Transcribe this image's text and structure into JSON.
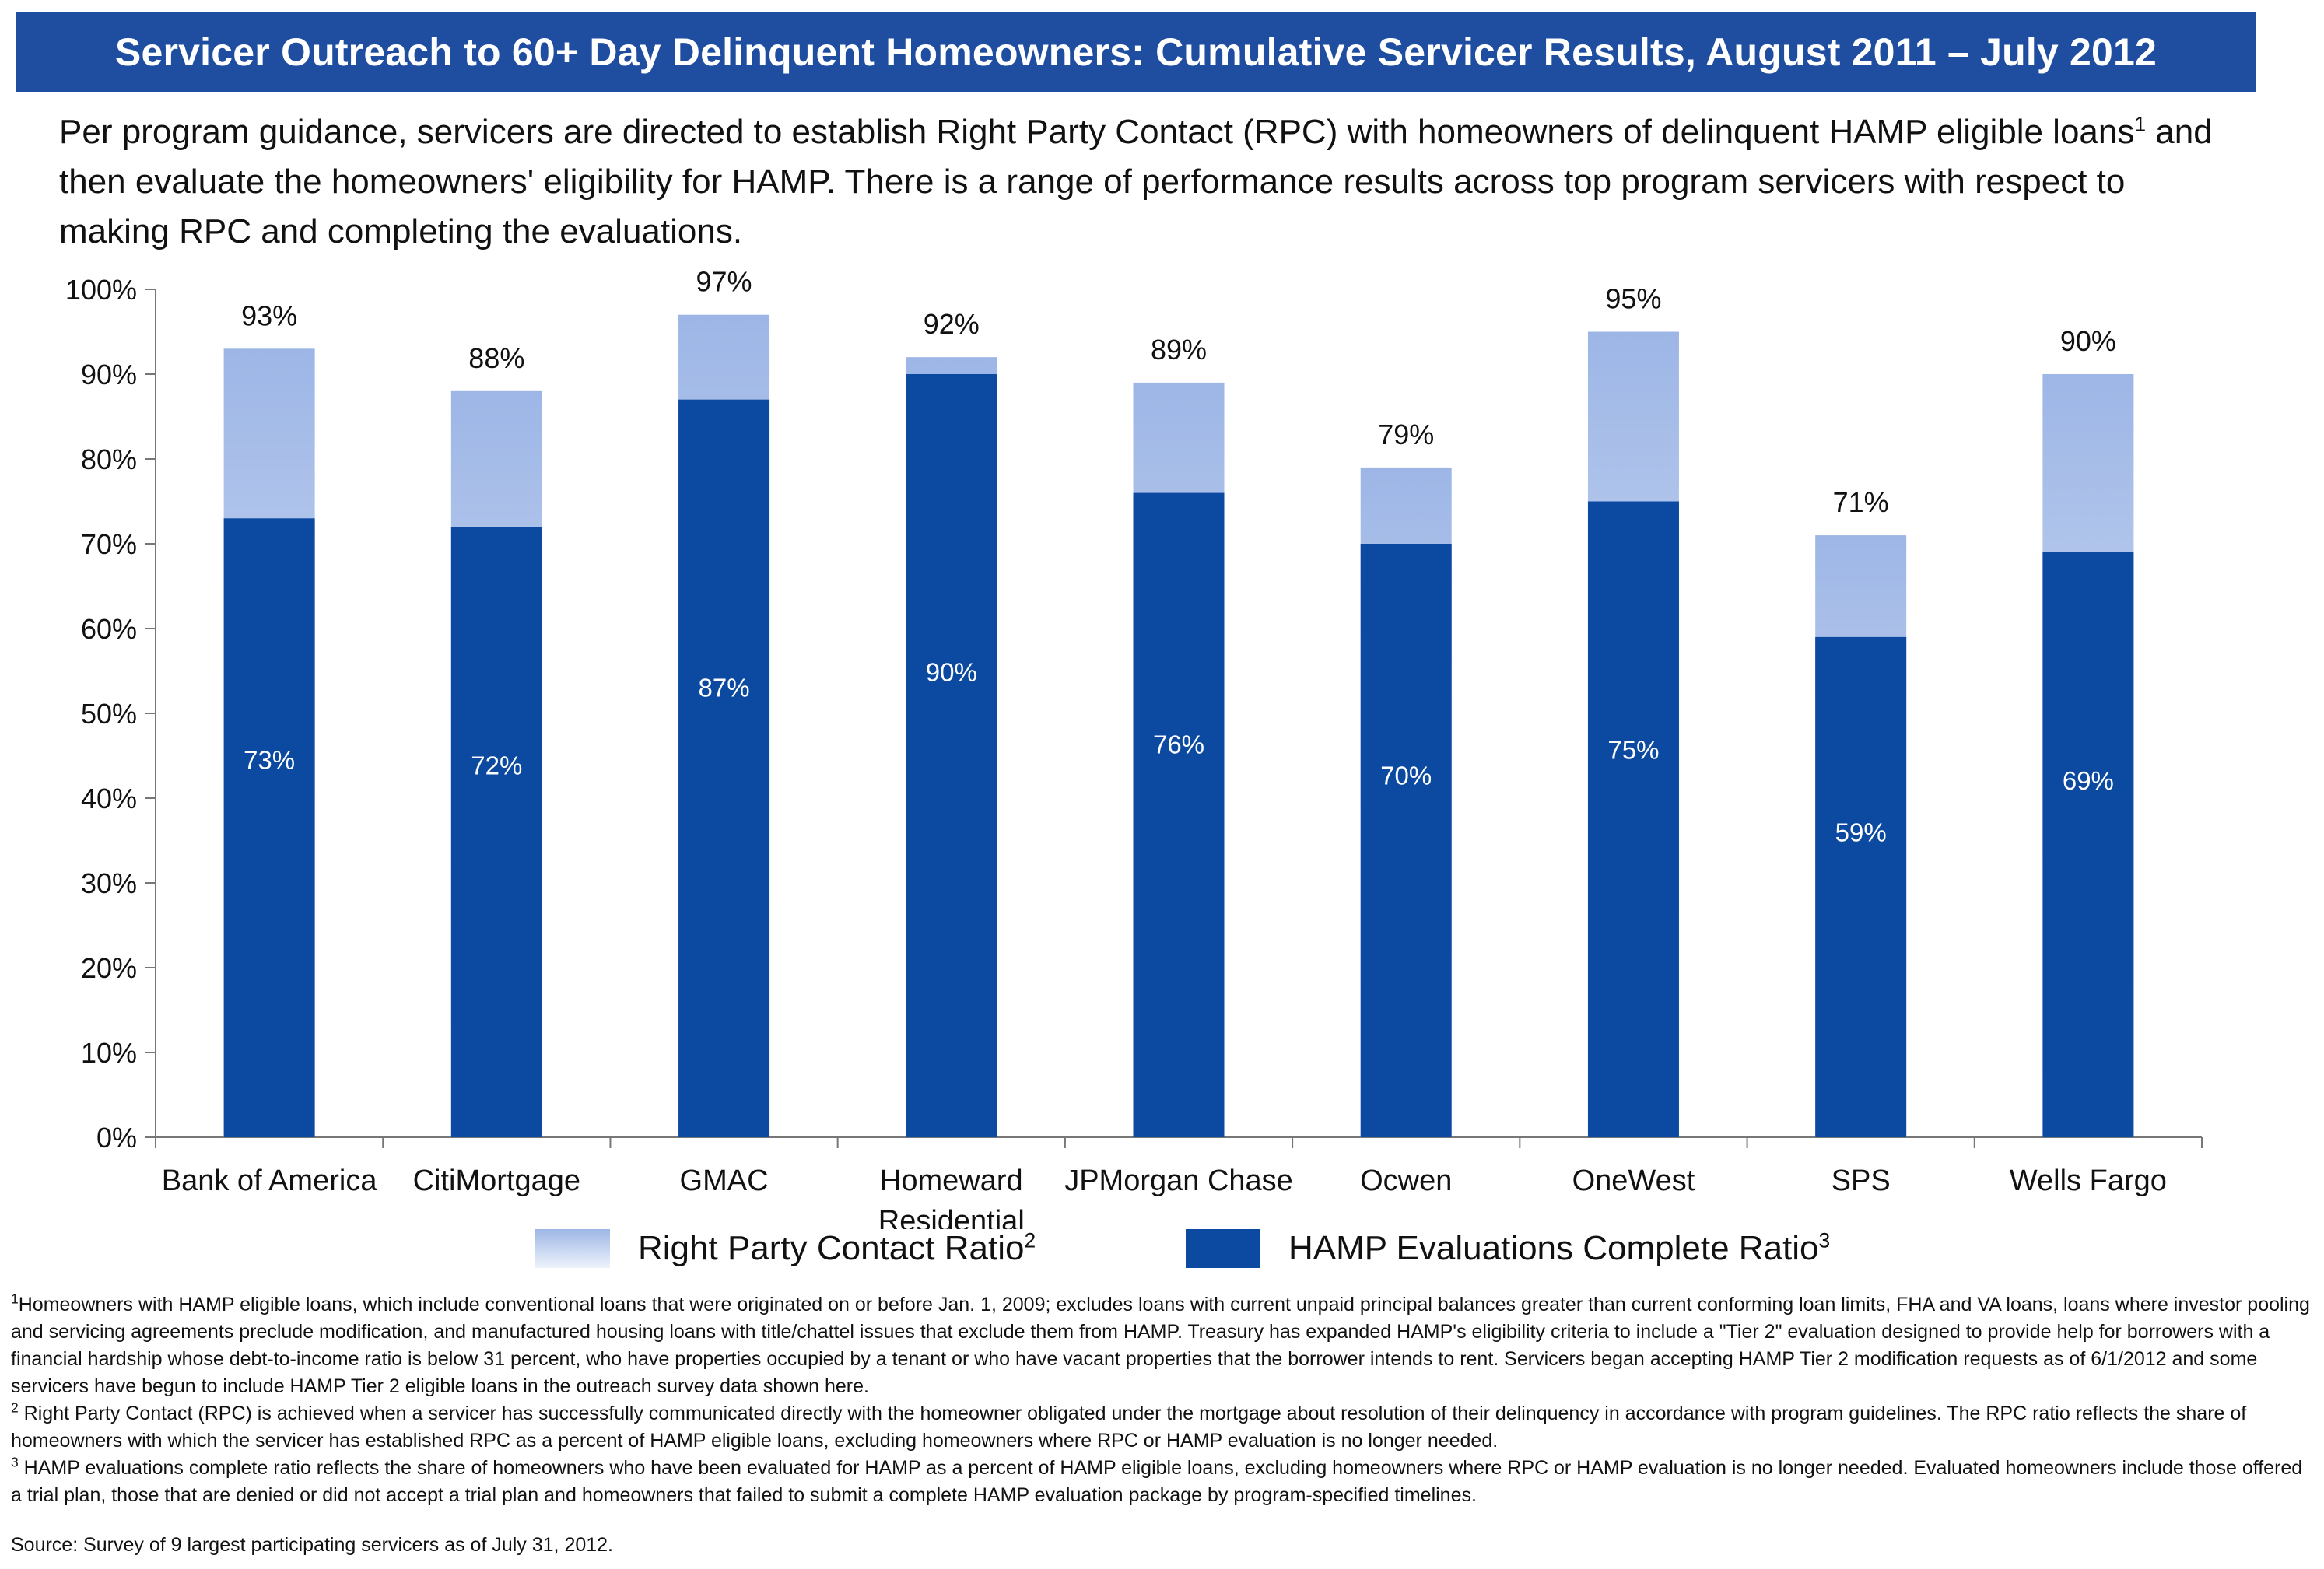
{
  "header": {
    "title": "Servicer Outreach to 60+ Day Delinquent Homeowners: Cumulative Servicer Results, August 2011 – July 2012"
  },
  "intro": {
    "text_a": "Per program guidance, servicers are directed to establish Right Party Contact (RPC) with homeowners of delinquent HAMP eligible loans",
    "sup": "1",
    "text_b": " and then evaluate the homeowners' eligibility for HAMP.  There is a range of performance results across top program servicers with respect to making RPC and completing the evaluations."
  },
  "chart_data": {
    "type": "bar",
    "stacked": "overlay",
    "categories": [
      "Bank of America",
      "CitiMortgage",
      "GMAC",
      "Homeward Residential",
      "JPMorgan Chase",
      "Ocwen",
      "OneWest",
      "SPS",
      "Wells Fargo"
    ],
    "series": [
      {
        "name": "Right Party Contact Ratio",
        "values": [
          93,
          88,
          97,
          92,
          89,
          79,
          95,
          71,
          90
        ],
        "color": "#9db6e6"
      },
      {
        "name": "HAMP Evaluations Complete Ratio",
        "values": [
          73,
          72,
          87,
          90,
          76,
          70,
          75,
          59,
          69
        ],
        "color": "#0b4aa0"
      }
    ],
    "ylim": [
      0,
      100
    ],
    "yticks": [
      "0%",
      "10%",
      "20%",
      "30%",
      "40%",
      "50%",
      "60%",
      "70%",
      "80%",
      "90%",
      "100%"
    ],
    "grid": false,
    "legend_position": "bottom"
  },
  "legend": {
    "rpc_label": "Right Party Contact Ratio",
    "rpc_sup": "2",
    "hamp_label": "HAMP Evaluations Complete Ratio",
    "hamp_sup": "3"
  },
  "footnotes": {
    "n1_mark": "1",
    "n1_text": "Homeowners with HAMP eligible loans, which include conventional loans that were originated on or before Jan. 1, 2009; excludes loans with current unpaid principal balances greater than current conforming loan limits, FHA and VA loans, loans where investor pooling and servicing agreements preclude modification, and manufactured housing loans with title/chattel issues that exclude them from HAMP.  Treasury has expanded HAMP's eligibility criteria to include a \"Tier 2\" evaluation designed to provide help for borrowers with a financial hardship whose debt-to-income ratio is below 31 percent, who have properties occupied by a tenant or who have vacant properties that the borrower intends to rent.  Servicers began accepting HAMP Tier 2 modification requests as of 6/1/2012 and some servicers have begun to include HAMP Tier 2 eligible loans in the outreach survey data shown here.",
    "n2_mark": "2",
    "n2_text": " Right Party Contact (RPC) is achieved when a servicer has successfully communicated directly with the homeowner obligated under the mortgage about resolution of their delinquency in accordance with program guidelines.  The RPC ratio reflects the share of homeowners with which the servicer has established RPC as a percent of HAMP eligible loans, excluding homeowners where RPC or HAMP evaluation is no longer needed.",
    "n3_mark": "3",
    "n3_text": " HAMP evaluations complete ratio reflects the share of homeowners who have been evaluated for HAMP as a percent of HAMP eligible loans, excluding homeowners where RPC or HAMP evaluation is no longer needed.  Evaluated homeowners include those offered a trial plan, those that are denied or did not accept a trial plan and homeowners that failed to submit a complete HAMP evaluation package by program-specified timelines."
  },
  "source": "Source: Survey of 9 largest participating servicers as of July 31, 2012."
}
